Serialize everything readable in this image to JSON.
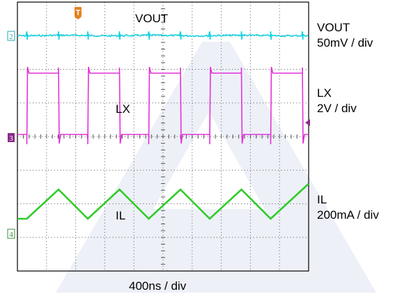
{
  "chart_data": {
    "type": "line",
    "grid": true,
    "trace_labels": [
      "VOUT",
      "LX",
      "IL"
    ],
    "timebase": "400ns / div",
    "channels": [
      {
        "id": "vout",
        "label": "VOUT",
        "scale": "50mV / div",
        "color": "#19d3df",
        "marker": "2"
      },
      {
        "id": "lx",
        "label": "LX",
        "scale": "2V / div",
        "color": "#e233d6",
        "marker": "3"
      },
      {
        "id": "il",
        "label": "IL",
        "scale": "200mA / div",
        "color": "#2ecc27",
        "marker": "4"
      }
    ],
    "trigger": {
      "label": "T",
      "color": "#e5811f"
    },
    "markers": {
      "ch2_color": "#2aa7aa",
      "ch3_color": "#8a2b8a",
      "ch4_color": "#3c8c3c"
    }
  },
  "watermark_color": "#eef0f8"
}
